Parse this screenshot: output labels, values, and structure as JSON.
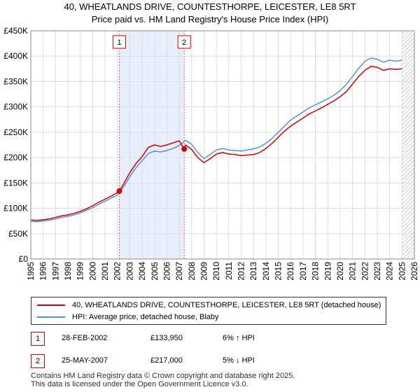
{
  "title_line1": "40, WHEATLANDS DRIVE, COUNTESTHORPE, LEICESTER, LE8 5RT",
  "title_line2": "Price paid vs. HM Land Registry's House Price Index (HPI)",
  "chart_data": {
    "type": "line",
    "ylim": [
      0,
      450000
    ],
    "xlim": [
      1995,
      2026
    ],
    "y_ticks": [
      0,
      50000,
      100000,
      150000,
      200000,
      250000,
      300000,
      350000,
      400000,
      450000
    ],
    "y_tick_labels": [
      "£0",
      "£50K",
      "£100K",
      "£150K",
      "£200K",
      "£250K",
      "£300K",
      "£350K",
      "£400K",
      "£450K"
    ],
    "x_ticks": [
      "1995",
      "1996",
      "1997",
      "1998",
      "1999",
      "2000",
      "2001",
      "2002",
      "2003",
      "2004",
      "2005",
      "2006",
      "2007",
      "2008",
      "2009",
      "2010",
      "2011",
      "2012",
      "2013",
      "2014",
      "2015",
      "2016",
      "2017",
      "2018",
      "2019",
      "2020",
      "2021",
      "2022",
      "2023",
      "2024",
      "2025",
      "2026"
    ],
    "grid": true,
    "future_hatch_from": 2025.0,
    "sale_markers": [
      {
        "label": "1",
        "x": 2002.16,
        "y": 133950
      },
      {
        "label": "2",
        "x": 2007.4,
        "y": 217000
      }
    ],
    "series": [
      {
        "name": "40, WHEATLANDS DRIVE, COUNTESTHORPE, LEICESTER, LE8 5RT (detached house)",
        "color": "#cc0000",
        "x": [
          1995.0,
          1995.5,
          1996.0,
          1996.5,
          1997.0,
          1997.5,
          1998.0,
          1998.5,
          1999.0,
          1999.5,
          2000.0,
          2000.5,
          2001.0,
          2001.5,
          2002.0,
          2002.16,
          2002.5,
          2003.0,
          2003.5,
          2004.0,
          2004.5,
          2005.0,
          2005.5,
          2006.0,
          2006.5,
          2007.0,
          2007.4,
          2007.5,
          2008.0,
          2008.5,
          2009.0,
          2009.5,
          2010.0,
          2010.5,
          2011.0,
          2011.5,
          2012.0,
          2012.5,
          2013.0,
          2013.5,
          2014.0,
          2014.5,
          2015.0,
          2015.5,
          2016.0,
          2016.5,
          2017.0,
          2017.5,
          2018.0,
          2018.5,
          2019.0,
          2019.5,
          2020.0,
          2020.5,
          2021.0,
          2021.5,
          2022.0,
          2022.5,
          2023.0,
          2023.5,
          2024.0,
          2024.5,
          2025.0
        ],
        "y": [
          77000,
          76000,
          77500,
          79000,
          82000,
          85000,
          87000,
          90000,
          94000,
          99000,
          105000,
          112000,
          118000,
          124000,
          131000,
          133950,
          148000,
          170000,
          188000,
          202000,
          220000,
          225000,
          222000,
          225000,
          229000,
          233000,
          217000,
          225000,
          216000,
          200000,
          190000,
          198000,
          207000,
          210000,
          207000,
          206000,
          204000,
          205000,
          206000,
          210000,
          218000,
          228000,
          240000,
          252000,
          262000,
          270000,
          278000,
          286000,
          292000,
          298000,
          305000,
          312000,
          320000,
          330000,
          345000,
          360000,
          372000,
          380000,
          378000,
          372000,
          375000,
          374000,
          375000
        ]
      },
      {
        "name": "HPI: Average price, detached house, Blaby",
        "color": "#5b8fd4",
        "x": [
          1995.0,
          1995.5,
          1996.0,
          1996.5,
          1997.0,
          1997.5,
          1998.0,
          1998.5,
          1999.0,
          1999.5,
          2000.0,
          2000.5,
          2001.0,
          2001.5,
          2002.0,
          2002.5,
          2003.0,
          2003.5,
          2004.0,
          2004.5,
          2005.0,
          2005.5,
          2006.0,
          2006.5,
          2007.0,
          2007.5,
          2008.0,
          2008.5,
          2009.0,
          2009.5,
          2010.0,
          2010.5,
          2011.0,
          2011.5,
          2012.0,
          2012.5,
          2013.0,
          2013.5,
          2014.0,
          2014.5,
          2015.0,
          2015.5,
          2016.0,
          2016.5,
          2017.0,
          2017.5,
          2018.0,
          2018.5,
          2019.0,
          2019.5,
          2020.0,
          2020.5,
          2021.0,
          2021.5,
          2022.0,
          2022.5,
          2023.0,
          2023.5,
          2024.0,
          2024.5,
          2025.0
        ],
        "y": [
          74000,
          73500,
          75000,
          76500,
          79000,
          82000,
          84000,
          87000,
          91000,
          96000,
          101000,
          108000,
          114000,
          120000,
          126000,
          142000,
          162000,
          180000,
          194000,
          208000,
          213000,
          211000,
          214000,
          218000,
          224000,
          234000,
          226000,
          210000,
          198000,
          206000,
          215000,
          218000,
          215000,
          214000,
          213000,
          215000,
          217000,
          221000,
          228000,
          238000,
          250000,
          262000,
          274000,
          282000,
          290000,
          298000,
          304000,
          310000,
          316000,
          323000,
          332000,
          344000,
          360000,
          376000,
          390000,
          396000,
          394000,
          388000,
          392000,
          390000,
          392000
        ]
      }
    ]
  },
  "legend": [
    {
      "label": "40, WHEATLANDS DRIVE, COUNTESTHORPE, LEICESTER, LE8 5RT (detached house)",
      "color": "#cc0000"
    },
    {
      "label": "HPI: Average price, detached house, Blaby",
      "color": "#5b8fd4"
    }
  ],
  "transactions": [
    {
      "num": "1",
      "date": "28-FEB-2002",
      "price": "£133,950",
      "hpi": "6% ↑ HPI"
    },
    {
      "num": "2",
      "date": "25-MAY-2007",
      "price": "£217,000",
      "hpi": "5% ↓ HPI"
    }
  ],
  "footer_line1": "Contains HM Land Registry data © Crown copyright and database right 2025.",
  "footer_line2": "This data is licensed under the Open Government Licence v3.0."
}
